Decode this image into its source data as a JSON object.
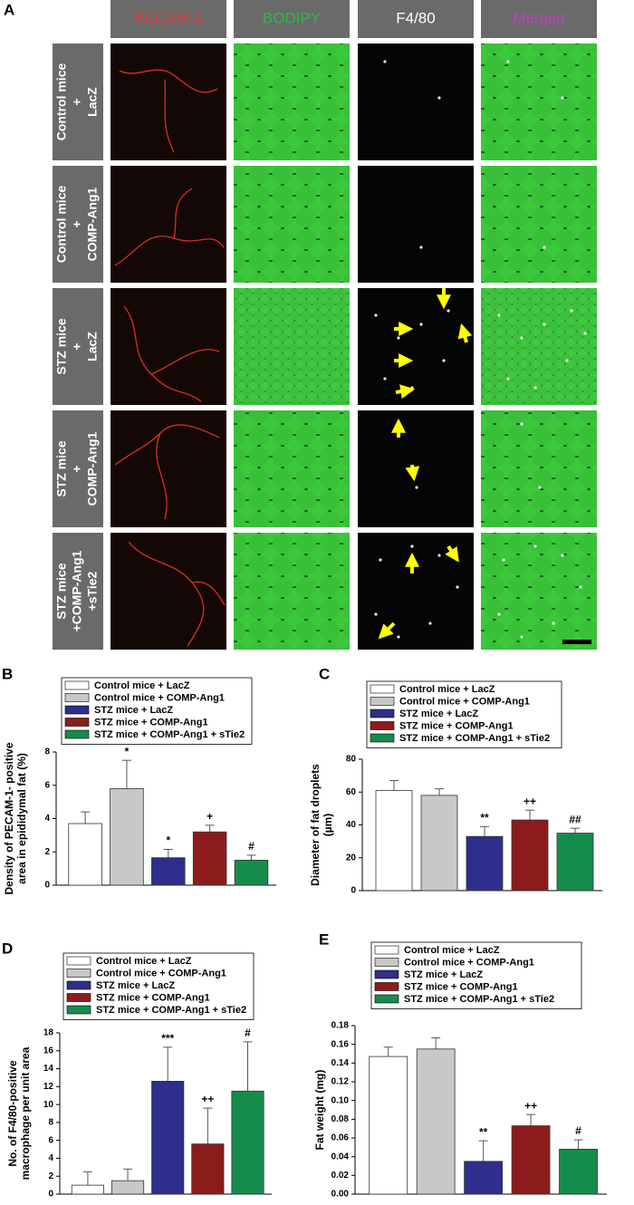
{
  "panel_a": {
    "label": "A",
    "columns": [
      {
        "label": "PECAM-1",
        "color": "#e83a3a"
      },
      {
        "label": "BODIPY",
        "color": "#2fb84a"
      },
      {
        "label": "F4/80",
        "color": "#ffffff"
      },
      {
        "label": "Merged",
        "color": "#c040c0"
      }
    ],
    "rows": [
      {
        "lines": [
          "Control mice",
          "+",
          "LacZ"
        ]
      },
      {
        "lines": [
          "Control mice",
          "+",
          "COMP-Ang1"
        ]
      },
      {
        "lines": [
          "STZ mice",
          "+",
          "LacZ"
        ]
      },
      {
        "lines": [
          "STZ mice",
          "+",
          "COMP-Ang1"
        ]
      },
      {
        "lines": [
          "STZ mice",
          "+COMP-Ang1",
          "+sTie2"
        ]
      }
    ]
  },
  "chart_data": [
    {
      "type": "bar",
      "panel_label": "B",
      "ylabel": [
        "Density of PECAM-1- positive",
        "area in epididymal fat (%)"
      ],
      "ylim": [
        0,
        8
      ],
      "yticks": [
        0,
        2,
        4,
        6,
        8
      ],
      "series": [
        {
          "name": "Control mice + LacZ",
          "color": "#ffffff",
          "values": [
            3.7
          ],
          "errors": [
            0.7
          ]
        },
        {
          "name": "Control mice + COMP-Ang1",
          "color": "#c8c8c8",
          "values": [
            5.8
          ],
          "errors": [
            1.7
          ],
          "annotation": "*"
        },
        {
          "name": "STZ mice + LacZ",
          "color": "#2e2e8c",
          "values": [
            1.65
          ],
          "errors": [
            0.5
          ],
          "annotation": "*"
        },
        {
          "name": "STZ mice + COMP-Ang1",
          "color": "#8c1c1c",
          "values": [
            3.2
          ],
          "errors": [
            0.4
          ],
          "annotation": "+"
        },
        {
          "name": "STZ mice + COMP-Ang1 + sTie2",
          "color": "#168c4c",
          "values": [
            1.5
          ],
          "errors": [
            0.3
          ],
          "annotation": "#"
        }
      ]
    },
    {
      "type": "bar",
      "panel_label": "C",
      "ylabel": [
        "Diameter of fat droplets",
        "(µm)"
      ],
      "ylim": [
        0,
        80
      ],
      "yticks": [
        0,
        20,
        40,
        60,
        80
      ],
      "series": [
        {
          "name": "Control mice + LacZ",
          "color": "#ffffff",
          "values": [
            61
          ],
          "errors": [
            6
          ]
        },
        {
          "name": "Control mice + COMP-Ang1",
          "color": "#c8c8c8",
          "values": [
            58
          ],
          "errors": [
            4
          ]
        },
        {
          "name": "STZ mice + LacZ",
          "color": "#2e2e8c",
          "values": [
            33
          ],
          "errors": [
            6
          ],
          "annotation": "**"
        },
        {
          "name": "STZ mice + COMP-Ang1",
          "color": "#8c1c1c",
          "values": [
            43
          ],
          "errors": [
            6
          ],
          "annotation": "++"
        },
        {
          "name": "STZ mice + COMP-Ang1 + sTie2",
          "color": "#168c4c",
          "values": [
            35
          ],
          "errors": [
            3
          ],
          "annotation": "##"
        }
      ]
    },
    {
      "type": "bar",
      "panel_label": "D",
      "ylabel": [
        "No. of F4/80-positive",
        "macrophage per unit area"
      ],
      "ylim": [
        0,
        18
      ],
      "yticks": [
        0,
        2,
        4,
        6,
        8,
        10,
        12,
        14,
        16,
        18
      ],
      "series": [
        {
          "name": "Control mice + LacZ",
          "color": "#ffffff",
          "values": [
            1
          ],
          "errors": [
            1.5
          ]
        },
        {
          "name": "Control mice + COMP-Ang1",
          "color": "#c8c8c8",
          "values": [
            1.5
          ],
          "errors": [
            1.3
          ]
        },
        {
          "name": "STZ mice + LacZ",
          "color": "#2e2e8c",
          "values": [
            12.6
          ],
          "errors": [
            3.8
          ],
          "annotation": "***"
        },
        {
          "name": "STZ mice + COMP-Ang1",
          "color": "#8c1c1c",
          "values": [
            5.6
          ],
          "errors": [
            4
          ],
          "annotation": "++"
        },
        {
          "name": "STZ mice + COMP-Ang1 + sTie2",
          "color": "#168c4c",
          "values": [
            11.5
          ],
          "errors": [
            5.5
          ],
          "annotation": "#"
        }
      ]
    },
    {
      "type": "bar",
      "panel_label": "E",
      "ylabel": [
        "Fat weight (mg)"
      ],
      "ylim": [
        0,
        0.18
      ],
      "yticks": [
        {
          "value": 0,
          "label": "0.00"
        },
        0.02,
        0.04,
        0.06,
        0.08,
        {
          "value": 0.1,
          "label": "0.10"
        },
        0.12,
        0.14,
        0.16,
        0.18
      ],
      "series": [
        {
          "name": "Control mice + LacZ",
          "color": "#ffffff",
          "values": [
            0.147
          ],
          "errors": [
            0.01
          ]
        },
        {
          "name": "Control mice + COMP-Ang1",
          "color": "#c8c8c8",
          "values": [
            0.155
          ],
          "errors": [
            0.012
          ]
        },
        {
          "name": "STZ mice + LacZ",
          "color": "#2e2e8c",
          "values": [
            0.035
          ],
          "errors": [
            0.022
          ],
          "annotation": "**"
        },
        {
          "name": "STZ mice + COMP-Ang1",
          "color": "#8c1c1c",
          "values": [
            0.073
          ],
          "errors": [
            0.012
          ],
          "annotation": "++"
        },
        {
          "name": "STZ mice + COMP-Ang1 + sTie2",
          "color": "#168c4c",
          "values": [
            0.048
          ],
          "errors": [
            0.01
          ],
          "annotation": "#"
        }
      ]
    }
  ]
}
